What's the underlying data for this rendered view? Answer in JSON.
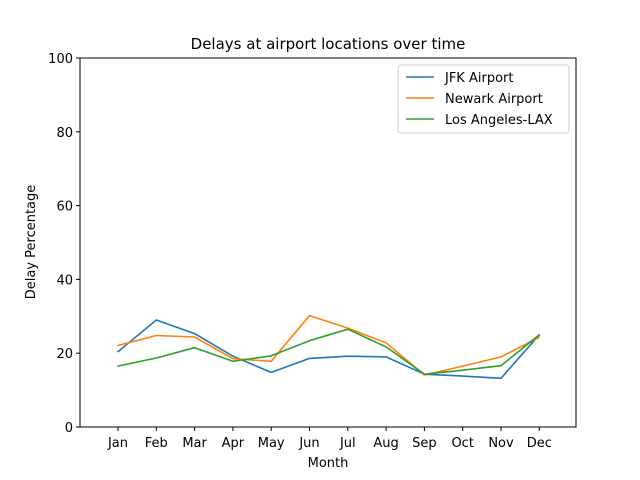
{
  "chart_data": {
    "type": "line",
    "title": "Delays at airport locations over time",
    "xlabel": "Month",
    "ylabel": "Delay Percentage",
    "categories": [
      "Jan",
      "Feb",
      "Mar",
      "Apr",
      "May",
      "Jun",
      "Jul",
      "Aug",
      "Sep",
      "Oct",
      "Nov",
      "Dec"
    ],
    "ylim": [
      0,
      100
    ],
    "yticks": [
      0,
      20,
      40,
      60,
      80,
      100
    ],
    "grid": false,
    "legend_position": "top-right",
    "series": [
      {
        "name": "JFK Airport",
        "color": "#1f77b4",
        "values": [
          20.4,
          29.0,
          25.3,
          19.2,
          14.8,
          18.6,
          19.2,
          19.0,
          14.3,
          13.8,
          13.2,
          25.0
        ]
      },
      {
        "name": "Newark Airport",
        "color": "#ff7f0e",
        "values": [
          22.1,
          24.8,
          24.4,
          18.5,
          17.8,
          30.2,
          26.8,
          22.8,
          14.1,
          16.5,
          19.0,
          24.3
        ]
      },
      {
        "name": "Los Angeles-LAX",
        "color": "#2ca02c",
        "values": [
          16.5,
          18.7,
          21.5,
          17.8,
          19.3,
          23.4,
          26.5,
          21.7,
          14.3,
          15.4,
          16.6,
          25.0
        ]
      }
    ]
  }
}
